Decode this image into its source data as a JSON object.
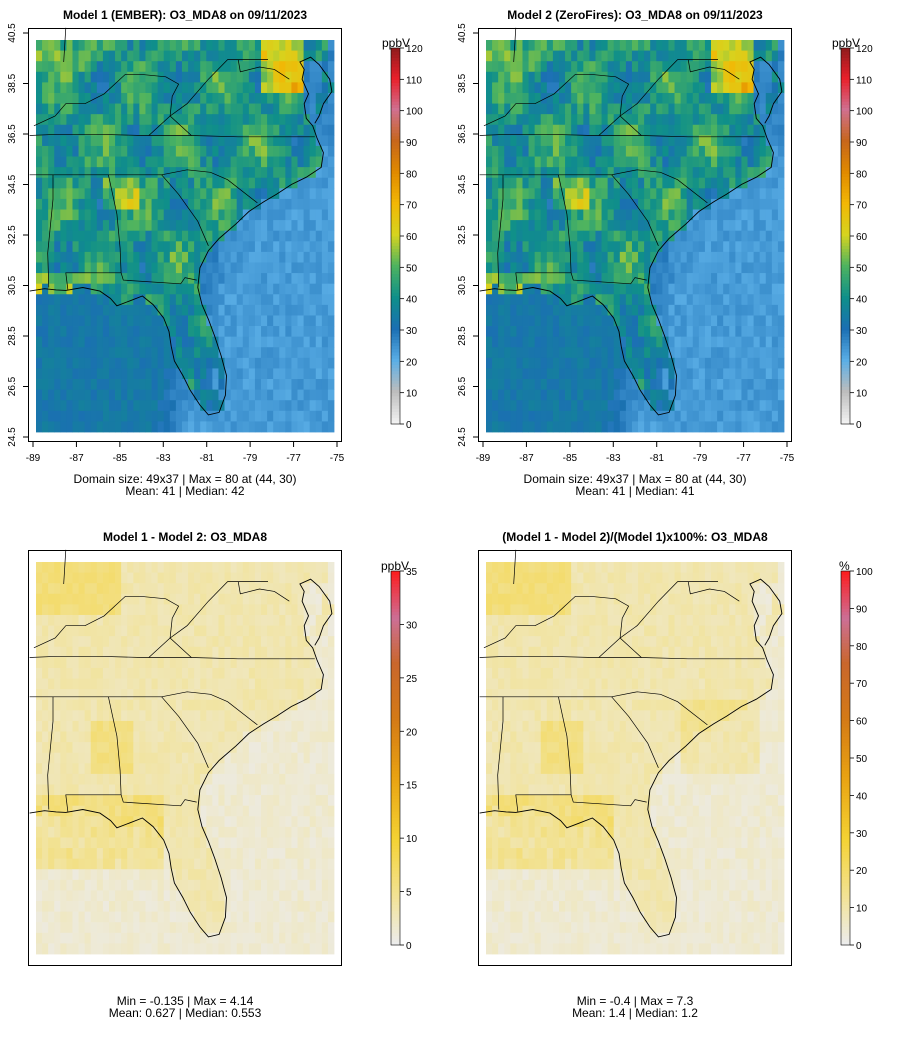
{
  "chart_data": [
    {
      "type": "heatmap",
      "title": "Model 1 (EMBER): O3_MDA8 on 09/11/2023",
      "x_ticks": [
        "-89",
        "-87",
        "-85",
        "-83",
        "-81",
        "-79",
        "-77",
        "-75"
      ],
      "y_ticks": [
        "24.5",
        "26.5",
        "28.5",
        "30.5",
        "32.5",
        "34.5",
        "36.5",
        "38.5",
        "40.5"
      ],
      "xlim": [
        -89,
        -75
      ],
      "ylim": [
        24.5,
        40.5
      ],
      "colorbar": {
        "unit": "ppbV",
        "ticks": [
          "0",
          "10",
          "20",
          "30",
          "40",
          "50",
          "60",
          "70",
          "80",
          "90",
          "100",
          "110",
          "120"
        ],
        "range": [
          0,
          120
        ]
      },
      "stats_line1": "Domain size: 49x37 | Max = 80 at (44, 30)",
      "stats_line2": "Mean: 41 |  Median: 42",
      "grid": {
        "nx": 49,
        "ny": 37,
        "mean": 41,
        "median": 42,
        "max": 80,
        "max_at": [
          44,
          30
        ]
      }
    },
    {
      "type": "heatmap",
      "title": "Model 2 (ZeroFires): O3_MDA8 on 09/11/2023",
      "x_ticks": [
        "-89",
        "-87",
        "-85",
        "-83",
        "-81",
        "-79",
        "-77",
        "-75"
      ],
      "y_ticks": [
        "24.5",
        "26.5",
        "28.5",
        "30.5",
        "32.5",
        "34.5",
        "36.5",
        "38.5",
        "40.5"
      ],
      "xlim": [
        -89,
        -75
      ],
      "ylim": [
        24.5,
        40.5
      ],
      "colorbar": {
        "unit": "ppbV",
        "ticks": [
          "0",
          "10",
          "20",
          "30",
          "40",
          "50",
          "60",
          "70",
          "80",
          "90",
          "100",
          "110",
          "120"
        ],
        "range": [
          0,
          120
        ]
      },
      "stats_line1": "Domain size: 49x37 | Max = 80 at (44, 30)",
      "stats_line2": "Mean: 41 |  Median: 41",
      "grid": {
        "nx": 49,
        "ny": 37,
        "mean": 41,
        "median": 41,
        "max": 80,
        "max_at": [
          44,
          30
        ]
      }
    },
    {
      "type": "heatmap",
      "title": "Model 1 - Model 2: O3_MDA8",
      "colorbar": {
        "unit": "ppbV",
        "ticks": [
          "0",
          "5",
          "10",
          "15",
          "20",
          "25",
          "30",
          "35"
        ],
        "range": [
          0,
          35
        ]
      },
      "stats_line1": "Min = -0.135 | Max = 4.14",
      "stats_line2": "Mean: 0.627 |  Median: 0.553",
      "grid": {
        "nx": 49,
        "ny": 37,
        "min": -0.135,
        "max": 4.14,
        "mean": 0.627,
        "median": 0.553
      }
    },
    {
      "type": "heatmap",
      "title": "(Model 1 - Model 2)/(Model 1)x100%: O3_MDA8",
      "colorbar": {
        "unit": "%",
        "ticks": [
          "0",
          "10",
          "20",
          "30",
          "40",
          "50",
          "60",
          "70",
          "80",
          "90",
          "100"
        ],
        "range": [
          0,
          100
        ]
      },
      "stats_line1": "Min = -0.4 | Max = 7.3",
      "stats_line2": "Mean: 1.4 |  Median: 1.2",
      "grid": {
        "nx": 49,
        "ny": 37,
        "min": -0.4,
        "max": 7.3,
        "mean": 1.4,
        "median": 1.2
      }
    }
  ],
  "colors": {
    "frame": "#000000",
    "no_diff": "#e6e6e6",
    "ocean": "#4aa8e0",
    "land_mid": "#0f9a78",
    "high": "#f4c30b"
  }
}
